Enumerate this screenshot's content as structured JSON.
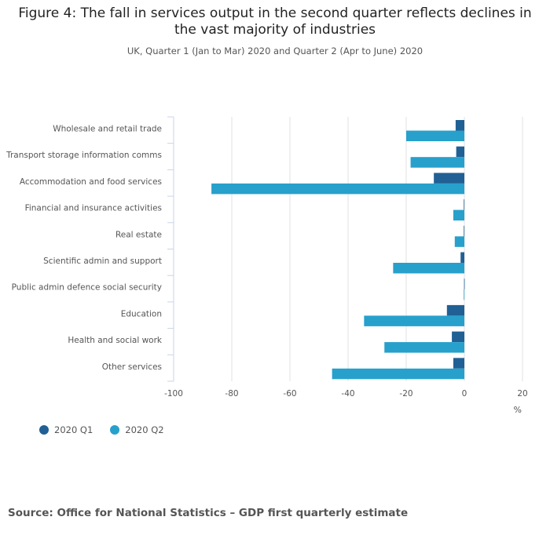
{
  "title": "Figure 4: The fall in services output in the second quarter reflects declines in the vast majority of industries",
  "subtitle": "UK, Quarter 1 (Jan to Mar) 2020 and Quarter 2 (Apr to June) 2020",
  "source": "Source: Office for National Statistics – GDP first quarterly estimate",
  "colors": {
    "q1": "#206095",
    "q2": "#27a0cc",
    "grid": "#e0e0e0",
    "axis": "#c8d4e8",
    "text": "#555555"
  },
  "chart_data": {
    "type": "bar",
    "orientation": "horizontal",
    "categories": [
      "Wholesale and retail trade",
      "Transport storage information comms",
      "Accommodation and food services",
      "Financial and insurance activities",
      "Real estate",
      "Scientific admin and support",
      "Public admin defence social security",
      "Education",
      "Health and social work",
      "Other services"
    ],
    "series": [
      {
        "name": "2020 Q1",
        "values": [
          -3,
          -2.8,
          -10.5,
          -0.2,
          -0.2,
          -1.3,
          -0.1,
          -6,
          -4.3,
          -3.8
        ]
      },
      {
        "name": "2020 Q2",
        "values": [
          -20,
          -18.5,
          -87,
          -3.8,
          -3.3,
          -24.5,
          -0.2,
          -34.5,
          -27.5,
          -45.5
        ]
      }
    ],
    "xlim": [
      -100,
      20
    ],
    "xticks": [
      -100,
      -80,
      -60,
      -40,
      -20,
      0,
      20
    ],
    "xlabel": "%",
    "legend_position": "bottom-left",
    "grid": true
  }
}
